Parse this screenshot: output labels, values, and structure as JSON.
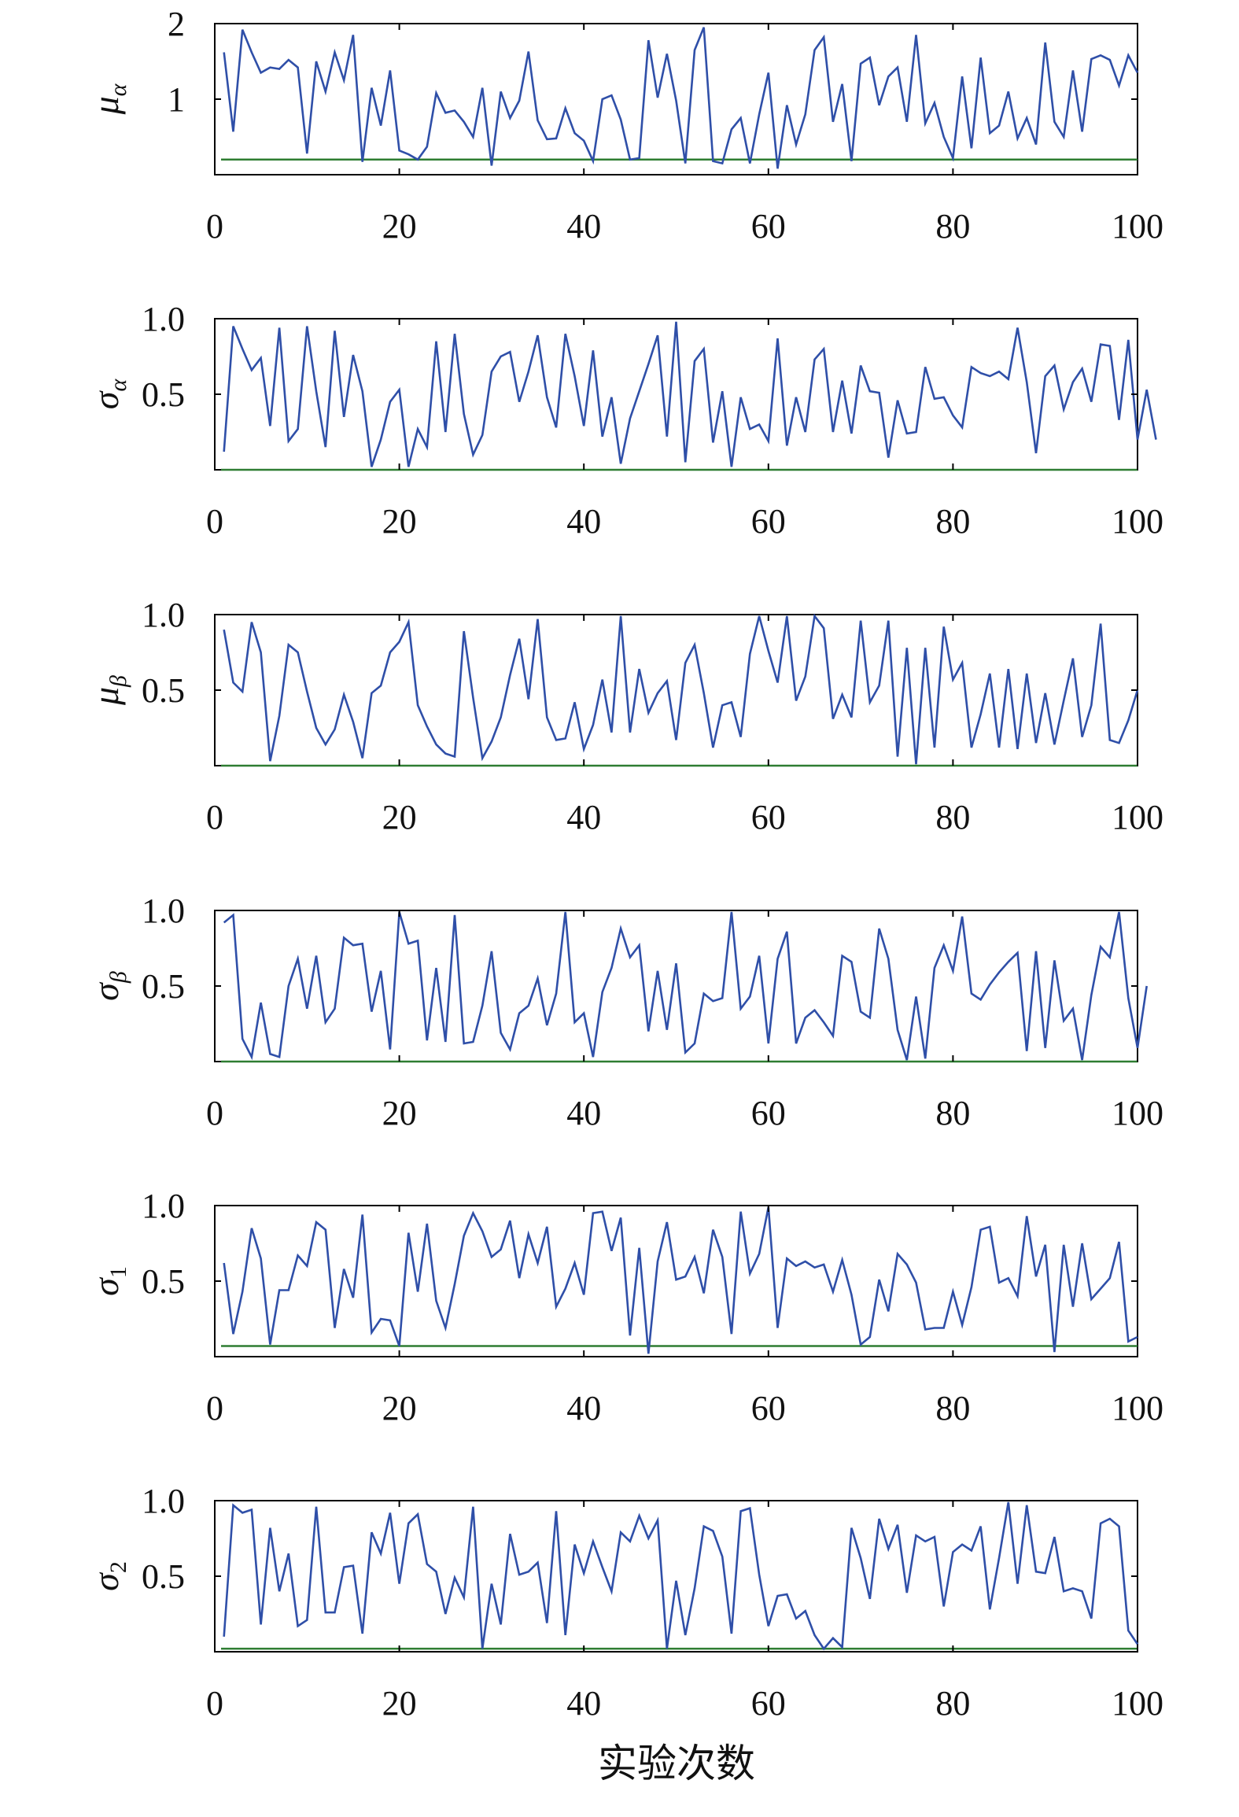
{
  "colors": {
    "series": "#2f4fa8",
    "baseline": "#2e7d32",
    "axis": "#000000"
  },
  "xlabel": "实验次数",
  "chart_data": [
    {
      "type": "line",
      "ylabel_symbol": "μ",
      "ylabel_subscript": "α",
      "xlim": [
        0,
        100
      ],
      "ylim": [
        0,
        2.0
      ],
      "xticks": [
        0,
        20,
        40,
        60,
        80,
        100
      ],
      "xtick_labels": [
        "0",
        "20",
        "40",
        "60",
        "80",
        "100"
      ],
      "yticks": [
        1,
        2
      ],
      "ytick_labels": [
        "1",
        "2"
      ],
      "baseline": 0.2,
      "x_start": 1,
      "values": [
        1.62,
        0.57,
        1.92,
        1.62,
        1.35,
        1.42,
        1.4,
        1.52,
        1.42,
        0.28,
        1.5,
        1.1,
        1.62,
        1.25,
        1.85,
        0.17,
        1.15,
        0.65,
        1.38,
        0.32,
        0.27,
        0.2,
        0.37,
        1.08,
        0.82,
        0.85,
        0.7,
        0.5,
        1.15,
        0.12,
        1.1,
        0.75,
        0.98,
        1.63,
        0.72,
        0.47,
        0.48,
        0.88,
        0.55,
        0.45,
        0.18,
        1.0,
        1.05,
        0.73,
        0.2,
        0.22,
        1.78,
        1.02,
        1.6,
        0.98,
        0.15,
        1.65,
        1.95,
        0.18,
        0.15,
        0.6,
        0.75,
        0.15,
        0.8,
        1.35,
        0.08,
        0.92,
        0.4,
        0.8,
        1.65,
        1.82,
        0.7,
        1.2,
        0.18,
        1.47,
        1.55,
        0.92,
        1.3,
        1.42,
        0.7,
        1.85,
        0.68,
        0.95,
        0.5,
        0.22,
        1.3,
        0.35,
        1.55,
        0.55,
        0.65,
        1.1,
        0.48,
        0.75,
        0.4,
        1.75,
        0.7,
        0.5,
        1.38,
        0.57,
        1.53,
        1.58,
        1.52,
        1.18,
        1.58,
        1.35
      ]
    },
    {
      "type": "line",
      "ylabel_symbol": "σ",
      "ylabel_subscript": "α",
      "xlim": [
        0,
        100
      ],
      "ylim": [
        0,
        1.0
      ],
      "xticks": [
        0,
        20,
        40,
        60,
        80,
        100
      ],
      "xtick_labels": [
        "0",
        "20",
        "40",
        "60",
        "80",
        "100"
      ],
      "yticks": [
        0.5,
        1.0
      ],
      "ytick_labels": [
        "0.5",
        "1.0"
      ],
      "baseline": 0.0,
      "x_start": 1,
      "values": [
        0.12,
        0.95,
        0.8,
        0.66,
        0.74,
        0.29,
        0.94,
        0.19,
        0.27,
        0.95,
        0.52,
        0.15,
        0.92,
        0.35,
        0.76,
        0.52,
        0.02,
        0.2,
        0.45,
        0.53,
        0.02,
        0.27,
        0.15,
        0.85,
        0.25,
        0.9,
        0.37,
        0.1,
        0.23,
        0.65,
        0.75,
        0.78,
        0.45,
        0.65,
        0.89,
        0.48,
        0.28,
        0.9,
        0.62,
        0.29,
        0.79,
        0.22,
        0.48,
        0.04,
        0.34,
        0.52,
        0.7,
        0.89,
        0.22,
        0.98,
        0.05,
        0.72,
        0.8,
        0.18,
        0.52,
        0.02,
        0.48,
        0.27,
        0.3,
        0.19,
        0.87,
        0.16,
        0.48,
        0.25,
        0.73,
        0.8,
        0.25,
        0.59,
        0.24,
        0.69,
        0.52,
        0.51,
        0.08,
        0.46,
        0.24,
        0.25,
        0.68,
        0.47,
        0.48,
        0.36,
        0.28,
        0.68,
        0.64,
        0.62,
        0.65,
        0.6,
        0.94,
        0.58,
        0.11,
        0.62,
        0.69,
        0.4,
        0.58,
        0.67,
        0.45,
        0.83,
        0.82,
        0.33,
        0.86,
        0.2,
        0.53,
        0.2
      ]
    },
    {
      "type": "line",
      "ylabel_symbol": "μ",
      "ylabel_subscript": "β",
      "xlim": [
        0,
        100
      ],
      "ylim": [
        0,
        1.0
      ],
      "xticks": [
        0,
        20,
        40,
        60,
        80,
        100
      ],
      "xtick_labels": [
        "0",
        "20",
        "40",
        "60",
        "80",
        "100"
      ],
      "yticks": [
        0.5,
        1.0
      ],
      "ytick_labels": [
        "0.5",
        "1.0"
      ],
      "baseline": 0.0,
      "x_start": 1,
      "values": [
        0.9,
        0.55,
        0.49,
        0.95,
        0.75,
        0.03,
        0.33,
        0.8,
        0.75,
        0.49,
        0.25,
        0.14,
        0.24,
        0.47,
        0.29,
        0.05,
        0.48,
        0.53,
        0.75,
        0.82,
        0.95,
        0.4,
        0.26,
        0.14,
        0.08,
        0.06,
        0.89,
        0.45,
        0.05,
        0.16,
        0.32,
        0.6,
        0.84,
        0.44,
        0.97,
        0.32,
        0.17,
        0.18,
        0.42,
        0.11,
        0.27,
        0.57,
        0.22,
        0.99,
        0.22,
        0.64,
        0.35,
        0.48,
        0.56,
        0.17,
        0.68,
        0.8,
        0.48,
        0.12,
        0.4,
        0.42,
        0.19,
        0.74,
        0.99,
        0.76,
        0.55,
        0.99,
        0.43,
        0.59,
        0.99,
        0.91,
        0.31,
        0.47,
        0.32,
        0.96,
        0.42,
        0.53,
        0.96,
        0.06,
        0.78,
        0.01,
        0.78,
        0.12,
        0.92,
        0.57,
        0.68,
        0.12,
        0.34,
        0.61,
        0.12,
        0.64,
        0.11,
        0.61,
        0.15,
        0.48,
        0.14,
        0.43,
        0.71,
        0.19,
        0.4,
        0.94,
        0.17,
        0.15,
        0.3,
        0.5
      ]
    },
    {
      "type": "line",
      "ylabel_symbol": "σ",
      "ylabel_subscript": "β",
      "xlim": [
        0,
        100
      ],
      "ylim": [
        0,
        1.0
      ],
      "xticks": [
        0,
        20,
        40,
        60,
        80,
        100
      ],
      "xtick_labels": [
        "0",
        "20",
        "40",
        "60",
        "80",
        "100"
      ],
      "yticks": [
        0.5,
        1.0
      ],
      "ytick_labels": [
        "0.5",
        "1.0"
      ],
      "baseline": 0.0,
      "x_start": 1,
      "values": [
        0.92,
        0.97,
        0.15,
        0.03,
        0.39,
        0.05,
        0.03,
        0.5,
        0.68,
        0.35,
        0.7,
        0.26,
        0.35,
        0.82,
        0.77,
        0.78,
        0.33,
        0.6,
        0.08,
        0.99,
        0.78,
        0.8,
        0.14,
        0.62,
        0.13,
        0.97,
        0.12,
        0.13,
        0.37,
        0.73,
        0.19,
        0.08,
        0.32,
        0.37,
        0.55,
        0.24,
        0.45,
        0.99,
        0.26,
        0.32,
        0.03,
        0.46,
        0.62,
        0.88,
        0.69,
        0.77,
        0.2,
        0.6,
        0.21,
        0.65,
        0.06,
        0.12,
        0.45,
        0.4,
        0.42,
        0.99,
        0.35,
        0.43,
        0.7,
        0.12,
        0.68,
        0.86,
        0.12,
        0.29,
        0.34,
        0.26,
        0.17,
        0.7,
        0.66,
        0.33,
        0.29,
        0.88,
        0.68,
        0.21,
        0.01,
        0.43,
        0.02,
        0.62,
        0.77,
        0.6,
        0.96,
        0.45,
        0.41,
        0.51,
        0.59,
        0.66,
        0.72,
        0.07,
        0.73,
        0.09,
        0.67,
        0.27,
        0.35,
        0.01,
        0.44,
        0.76,
        0.69,
        0.99,
        0.42,
        0.09,
        0.5
      ]
    },
    {
      "type": "line",
      "ylabel_symbol": "σ",
      "ylabel_subscript": "1",
      "xlim": [
        0,
        100
      ],
      "ylim": [
        0,
        1.0
      ],
      "xticks": [
        0,
        20,
        40,
        60,
        80,
        100
      ],
      "xtick_labels": [
        "0",
        "20",
        "40",
        "60",
        "80",
        "100"
      ],
      "yticks": [
        0.5,
        1.0
      ],
      "ytick_labels": [
        "0.5",
        "1.0"
      ],
      "baseline": 0.07,
      "x_start": 1,
      "values": [
        0.62,
        0.15,
        0.43,
        0.85,
        0.65,
        0.08,
        0.44,
        0.44,
        0.67,
        0.6,
        0.89,
        0.84,
        0.19,
        0.58,
        0.39,
        0.94,
        0.16,
        0.25,
        0.24,
        0.07,
        0.82,
        0.43,
        0.88,
        0.37,
        0.19,
        0.48,
        0.8,
        0.95,
        0.83,
        0.66,
        0.71,
        0.9,
        0.52,
        0.81,
        0.62,
        0.86,
        0.33,
        0.45,
        0.62,
        0.41,
        0.95,
        0.96,
        0.7,
        0.92,
        0.14,
        0.72,
        0.02,
        0.63,
        0.89,
        0.51,
        0.53,
        0.66,
        0.42,
        0.84,
        0.66,
        0.15,
        0.96,
        0.55,
        0.68,
        0.99,
        0.19,
        0.65,
        0.6,
        0.63,
        0.59,
        0.61,
        0.43,
        0.64,
        0.41,
        0.08,
        0.13,
        0.51,
        0.3,
        0.68,
        0.61,
        0.49,
        0.18,
        0.19,
        0.19,
        0.43,
        0.21,
        0.46,
        0.84,
        0.86,
        0.49,
        0.52,
        0.4,
        0.93,
        0.53,
        0.74,
        0.03,
        0.74,
        0.33,
        0.75,
        0.38,
        0.45,
        0.52,
        0.76,
        0.1,
        0.13
      ]
    },
    {
      "type": "line",
      "ylabel_symbol": "σ",
      "ylabel_subscript": "2",
      "xlim": [
        0,
        100
      ],
      "ylim": [
        0,
        1.0
      ],
      "xticks": [
        0,
        20,
        40,
        60,
        80,
        100
      ],
      "xtick_labels": [
        "0",
        "20",
        "40",
        "60",
        "80",
        "100"
      ],
      "yticks": [
        0.5,
        1.0
      ],
      "ytick_labels": [
        "0.5",
        "1.0"
      ],
      "baseline": 0.02,
      "x_start": 1,
      "values": [
        0.1,
        0.97,
        0.92,
        0.94,
        0.18,
        0.82,
        0.4,
        0.65,
        0.17,
        0.21,
        0.96,
        0.26,
        0.26,
        0.56,
        0.57,
        0.12,
        0.79,
        0.65,
        0.92,
        0.45,
        0.85,
        0.91,
        0.58,
        0.53,
        0.25,
        0.49,
        0.36,
        0.96,
        0.02,
        0.45,
        0.18,
        0.78,
        0.51,
        0.53,
        0.59,
        0.19,
        0.93,
        0.11,
        0.71,
        0.52,
        0.73,
        0.56,
        0.4,
        0.79,
        0.73,
        0.9,
        0.75,
        0.87,
        0.02,
        0.47,
        0.11,
        0.42,
        0.83,
        0.8,
        0.63,
        0.12,
        0.93,
        0.95,
        0.51,
        0.17,
        0.37,
        0.38,
        0.22,
        0.27,
        0.11,
        0.02,
        0.09,
        0.03,
        0.82,
        0.62,
        0.35,
        0.88,
        0.68,
        0.84,
        0.39,
        0.77,
        0.73,
        0.76,
        0.3,
        0.66,
        0.71,
        0.67,
        0.83,
        0.28,
        0.62,
        0.99,
        0.45,
        0.97,
        0.53,
        0.52,
        0.76,
        0.4,
        0.42,
        0.4,
        0.22,
        0.85,
        0.88,
        0.83,
        0.14,
        0.05
      ]
    }
  ]
}
